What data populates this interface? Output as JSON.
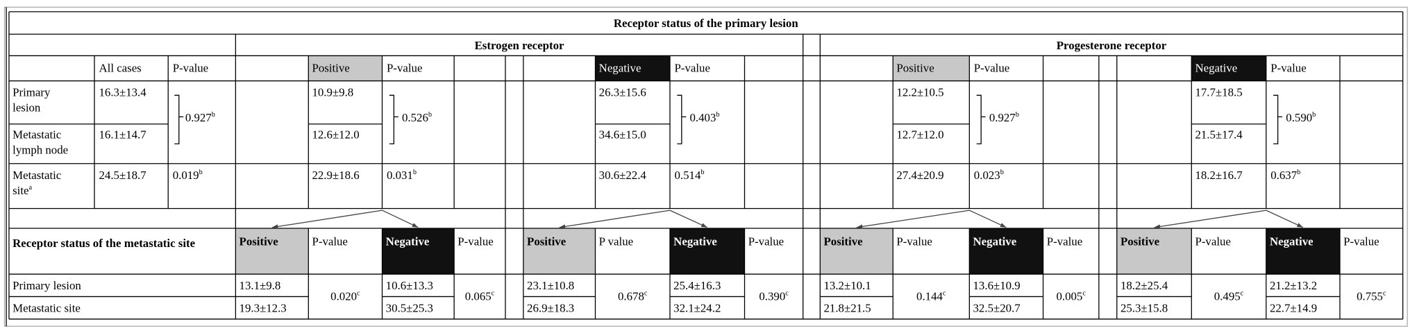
{
  "title": "Receptor status of the primary lesion",
  "groups": [
    "Estrogen receptor",
    "Progesterone receptor"
  ],
  "colors": {
    "positive": "#c8c8c8",
    "negative": "#111111"
  },
  "upper_header": {
    "all_cases": "All cases",
    "p_value": "P-value"
  },
  "row_labels": [
    {
      "text": "Primary lesion"
    },
    {
      "text": "Metastatic lymph node"
    },
    {
      "text": "Metastatic site",
      "note": "a"
    }
  ],
  "all_cases": {
    "values": [
      "16.3±13.4",
      "16.1±14.7",
      "24.5±18.7"
    ],
    "p_pair": {
      "text": "0.927",
      "note": "b"
    },
    "p_site": {
      "text": "0.019",
      "note": "b"
    }
  },
  "subgroups": [
    {
      "label": "Positive",
      "p_label": "P-value",
      "values": [
        "10.9±9.8",
        "12.6±12.0",
        "22.9±18.6"
      ],
      "p_pair": {
        "text": "0.526",
        "note": "b"
      },
      "p_site": {
        "text": "0.031",
        "note": "b"
      }
    },
    {
      "label": "Negative",
      "p_label": "P-value",
      "values": [
        "26.3±15.6",
        "34.6±15.0",
        "30.6±22.4"
      ],
      "p_pair": {
        "text": "0.403",
        "note": "b"
      },
      "p_site": {
        "text": "0.514",
        "note": "b"
      }
    },
    {
      "label": "Positive",
      "p_label": "P-value",
      "values": [
        "12.2±10.5",
        "12.7±12.0",
        "27.4±20.9"
      ],
      "p_pair": {
        "text": "0.927",
        "note": "b"
      },
      "p_site": {
        "text": "0.023",
        "note": "b"
      }
    },
    {
      "label": "Negative",
      "p_label": "P-value",
      "values": [
        "17.7±18.5",
        "21.5±17.4",
        "18.2±16.7"
      ],
      "p_pair": {
        "text": "0.590",
        "note": "b"
      },
      "p_site": {
        "text": "0.637",
        "note": "b"
      }
    }
  ],
  "lower": {
    "label": "Receptor status of the metastatic site",
    "row_labels": [
      "Primary lesion",
      "Metastatic site"
    ],
    "blocks": [
      {
        "headers": [
          "Positive",
          "P-value",
          "Negative",
          "P-value"
        ],
        "positive": [
          "13.1±9.8",
          "19.3±12.3"
        ],
        "positive_p": {
          "text": "0.020",
          "note": "c"
        },
        "negative": [
          "10.6±13.3",
          "30.5±25.3"
        ],
        "negative_p": {
          "text": "0.065",
          "note": "c"
        }
      },
      {
        "headers": [
          "Positive",
          "P value",
          "Negative",
          "P-value"
        ],
        "positive": [
          "23.1±10.8",
          "26.9±18.3"
        ],
        "positive_p": {
          "text": "0.678",
          "note": "c"
        },
        "negative": [
          "25.4±16.3",
          "32.1±24.2"
        ],
        "negative_p": {
          "text": "0.390",
          "note": "c"
        }
      },
      {
        "headers": [
          "Positive",
          "P-value",
          "Negative",
          "P-value"
        ],
        "positive": [
          "13.2±10.1",
          "21.8±21.5"
        ],
        "positive_p": {
          "text": "0.144",
          "note": "c"
        },
        "negative": [
          "13.6±10.9",
          "32.5±20.7"
        ],
        "negative_p": {
          "text": "0.005",
          "note": "c"
        }
      },
      {
        "headers": [
          "Positive",
          "P-value",
          "Negative",
          "P-value"
        ],
        "positive": [
          "18.2±25.4",
          "25.3±15.8"
        ],
        "positive_p": {
          "text": "0.495",
          "note": "c"
        },
        "negative": [
          "21.2±13.2",
          "22.7±14.9"
        ],
        "negative_p": {
          "text": "0.755",
          "note": "c"
        }
      }
    ]
  }
}
